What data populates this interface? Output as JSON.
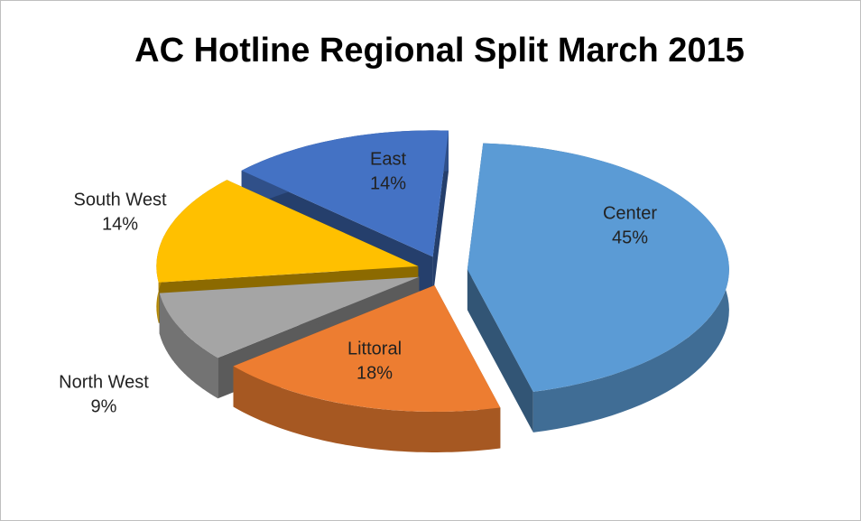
{
  "chart_data": {
    "type": "pie",
    "title": "AC Hotline Regional Split March 2015",
    "categories": [
      "Center",
      "Littoral",
      "North West",
      "South West",
      "East"
    ],
    "values": [
      45,
      18,
      9,
      14,
      14
    ],
    "value_labels": [
      "45%",
      "18%",
      "9%",
      "14%",
      "14%"
    ],
    "colors": [
      "#5b9bd5",
      "#ed7d31",
      "#a5a5a5",
      "#ffc000",
      "#4472c4"
    ]
  }
}
